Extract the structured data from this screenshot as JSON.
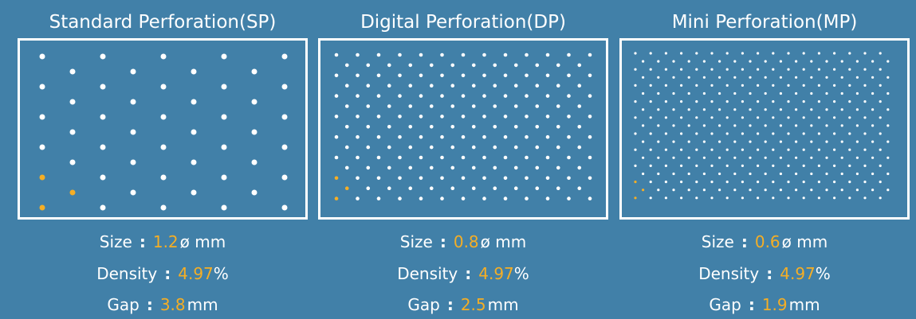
{
  "colors": {
    "background": "#4180a8",
    "dot": "#ffffff",
    "highlight_dot": "#f5ae25",
    "value_text": "#f5ae25",
    "frame": "#ffffff"
  },
  "labels": {
    "size": "Size",
    "density": "Density",
    "gap": "Gap",
    "separator": ":"
  },
  "panels": [
    {
      "title": "Standard Perforation(SP)",
      "size_value": "1.2",
      "size_unit": "ø mm",
      "density_value": "4.97",
      "density_unit": "%",
      "gap_value": "3.8",
      "gap_unit": "mm"
    },
    {
      "title": "Digital Perforation(DP)",
      "size_value": "0.8",
      "size_unit": "ø mm",
      "density_value": "4.97",
      "density_unit": "%",
      "gap_value": "2.5",
      "gap_unit": "mm"
    },
    {
      "title": "Mini Perforation(MP)",
      "size_value": "0.6",
      "size_unit": "ø mm",
      "density_value": "4.97",
      "density_unit": "%",
      "gap_value": "1.9",
      "gap_unit": "mm"
    }
  ]
}
